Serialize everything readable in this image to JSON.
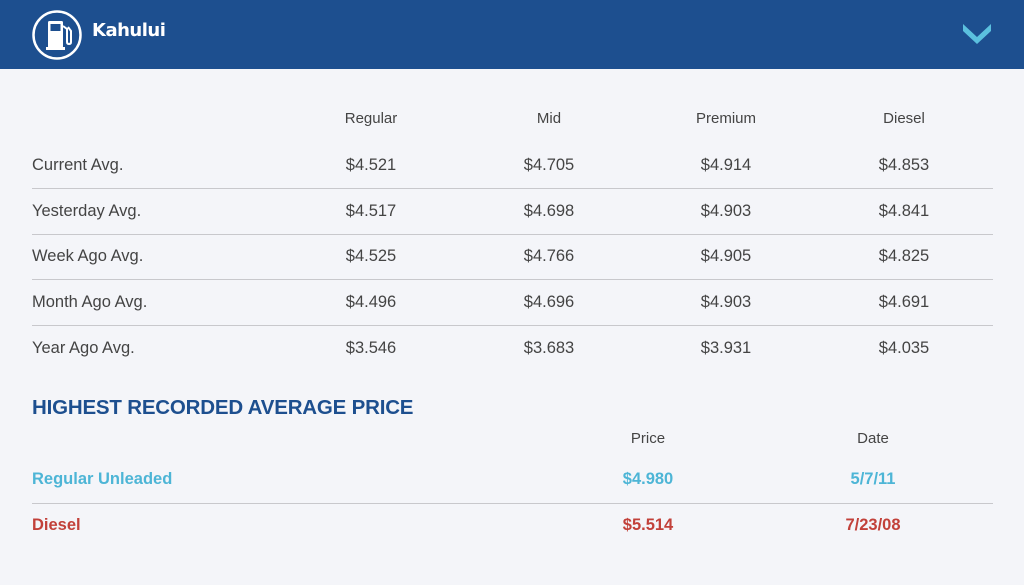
{
  "header": {
    "title": "Kahului",
    "logo_icon": "gas-pump-icon",
    "expand_icon": "chevron-down-icon",
    "background_color": "#1d4f8f",
    "chevron_color": "#5bc0de"
  },
  "averages": {
    "columns": [
      "Regular",
      "Mid",
      "Premium",
      "Diesel"
    ],
    "rows": [
      {
        "label": "Current Avg.",
        "values": [
          "$4.521",
          "$4.705",
          "$4.914",
          "$4.853"
        ]
      },
      {
        "label": "Yesterday Avg.",
        "values": [
          "$4.517",
          "$4.698",
          "$4.903",
          "$4.841"
        ]
      },
      {
        "label": "Week Ago Avg.",
        "values": [
          "$4.525",
          "$4.766",
          "$4.905",
          "$4.825"
        ]
      },
      {
        "label": "Month Ago Avg.",
        "values": [
          "$4.496",
          "$4.696",
          "$4.903",
          "$4.691"
        ]
      },
      {
        "label": "Year Ago Avg.",
        "values": [
          "$3.546",
          "$3.683",
          "$3.931",
          "$4.035"
        ]
      }
    ]
  },
  "highest": {
    "title": "HIGHEST RECORDED AVERAGE PRICE",
    "columns": [
      "Price",
      "Date"
    ],
    "rows": [
      {
        "label": "Regular Unleaded",
        "price": "$4.980",
        "date": "5/7/11",
        "color": "#4db5d6"
      },
      {
        "label": "Diesel",
        "price": "$5.514",
        "date": "7/23/08",
        "color": "#c2413a"
      }
    ]
  }
}
